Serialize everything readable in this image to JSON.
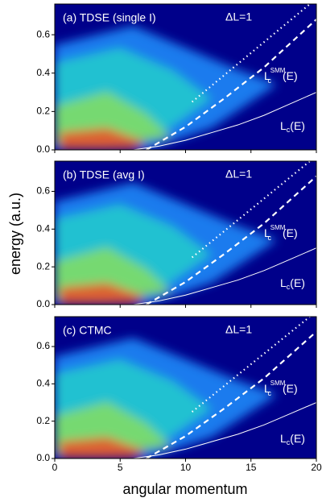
{
  "figure": {
    "ylabel": "energy (a.u.)",
    "xlabel": "angular momentum"
  },
  "chart_data": [
    {
      "type": "line",
      "title": "(a) TDSE (single I)",
      "xlim": [
        0,
        20
      ],
      "ylim": [
        0,
        0.76
      ],
      "xticks": [
        0,
        5,
        10,
        15,
        20
      ],
      "show_xtick_labels": false,
      "yticks": [
        {
          "value": 0,
          "label": "0.0"
        },
        0.2,
        0.4,
        0.6
      ],
      "series": [
        {
          "color": "#ffffff",
          "style": "dotted",
          "x": [
            10.5,
            19.5
          ],
          "values": [
            0.25,
            0.76
          ]
        },
        {
          "color": "#ffffff",
          "style": "dashed",
          "x": [
            7,
            10,
            13,
            16,
            20
          ],
          "values": [
            0,
            0.12,
            0.27,
            0.43,
            0.68
          ]
        },
        {
          "color": "#ffffff",
          "style": "solid",
          "x": [
            6,
            8,
            10,
            12,
            14,
            16,
            18,
            20
          ],
          "values": [
            0,
            0.02,
            0.05,
            0.09,
            0.13,
            0.18,
            0.24,
            0.3
          ]
        }
      ],
      "annotations": {
        "dl": "ΔL=1",
        "smm": {
          "base": "L",
          "sub": "c",
          "sup": "SMM",
          "tail": "(E)"
        },
        "lc": {
          "base": "L",
          "sub": "c",
          "tail": "(E)"
        }
      }
    },
    {
      "type": "line",
      "title": "(b) TDSE (avg I)",
      "xlim": [
        0,
        20
      ],
      "ylim": [
        0,
        0.76
      ],
      "xticks": [
        0,
        5,
        10,
        15,
        20
      ],
      "show_xtick_labels": false,
      "yticks": [
        {
          "value": 0,
          "label": "0.0"
        },
        0.2,
        0.4,
        0.6
      ],
      "series": [
        {
          "color": "#ffffff",
          "style": "dotted",
          "x": [
            10.5,
            19.5
          ],
          "values": [
            0.25,
            0.76
          ]
        },
        {
          "color": "#ffffff",
          "style": "dashed",
          "x": [
            7,
            10,
            13,
            16,
            20
          ],
          "values": [
            0,
            0.12,
            0.27,
            0.43,
            0.68
          ]
        },
        {
          "color": "#ffffff",
          "style": "solid",
          "x": [
            6,
            8,
            10,
            12,
            14,
            16,
            18,
            20
          ],
          "values": [
            0,
            0.02,
            0.05,
            0.09,
            0.13,
            0.18,
            0.24,
            0.3
          ]
        }
      ],
      "annotations": {
        "dl": "ΔL=1",
        "smm": {
          "base": "L",
          "sub": "c",
          "sup": "SMM",
          "tail": "(E)"
        },
        "lc": {
          "base": "L",
          "sub": "c",
          "tail": "(E)"
        }
      }
    },
    {
      "type": "line",
      "title": "(c) CTMC",
      "xlim": [
        0,
        20
      ],
      "ylim": [
        0,
        0.76
      ],
      "xticks": [
        0,
        5,
        10,
        15,
        20
      ],
      "show_xtick_labels": true,
      "yticks": [
        {
          "value": 0,
          "label": "0.0"
        },
        0.2,
        0.4,
        0.6
      ],
      "series": [
        {
          "color": "#ffffff",
          "style": "dotted",
          "x": [
            10.5,
            19.5
          ],
          "values": [
            0.25,
            0.76
          ]
        },
        {
          "color": "#ffffff",
          "style": "dashed",
          "x": [
            7,
            10,
            13,
            16,
            20
          ],
          "values": [
            0,
            0.12,
            0.27,
            0.43,
            0.68
          ]
        },
        {
          "color": "#ffffff",
          "style": "solid",
          "x": [
            6,
            8,
            10,
            12,
            14,
            16,
            18,
            20
          ],
          "values": [
            0,
            0.02,
            0.05,
            0.09,
            0.13,
            0.18,
            0.24,
            0.3
          ]
        }
      ],
      "annotations": {
        "dl": "ΔL=1",
        "smm": {
          "base": "L",
          "sub": "c",
          "sup": "SMM",
          "tail": "(E)"
        },
        "lc": {
          "base": "L",
          "sub": "c",
          "tail": "(E)"
        }
      }
    }
  ]
}
